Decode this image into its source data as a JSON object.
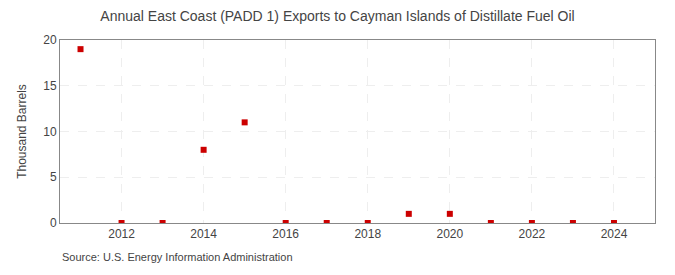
{
  "chart_data": {
    "type": "scatter",
    "title": "Annual East Coast (PADD 1) Exports to Cayman Islands of Distillate Fuel Oil",
    "ylabel": "Thousand Barrels",
    "annotations": [
      "Source: U.S. Energy Information Administration"
    ],
    "x": [
      2011,
      2012,
      2013,
      2014,
      2015,
      2016,
      2017,
      2018,
      2019,
      2020,
      2021,
      2022,
      2023,
      2024
    ],
    "values": [
      19,
      0,
      0,
      8,
      11,
      0,
      0,
      0,
      1,
      1,
      0,
      0,
      0,
      0
    ],
    "color": "#cc0000",
    "marker": "square",
    "xlim": [
      2010.5,
      2025.0
    ],
    "xticks": [
      2012,
      2014,
      2016,
      2018,
      2020,
      2022,
      2024
    ],
    "ylim": [
      0,
      20
    ],
    "yticks": [
      0,
      5,
      10,
      15,
      20
    ],
    "grid": true
  }
}
